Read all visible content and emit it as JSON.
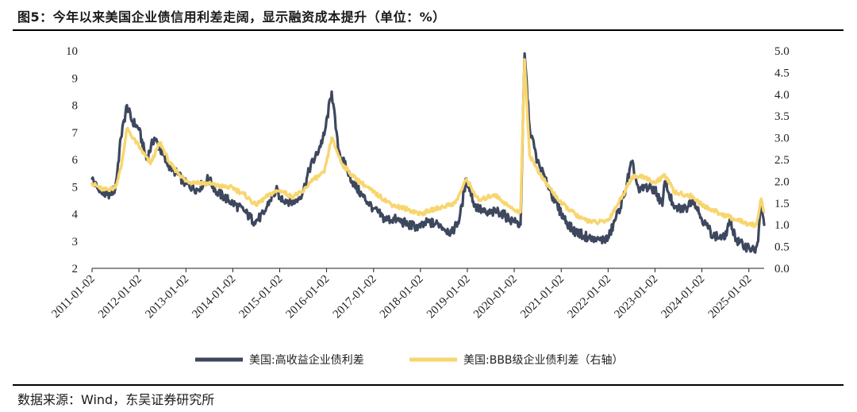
{
  "title": "图5：今年以来美国企业债信用利差走阔，显示融资成本提升（单位：%）",
  "source": "数据来源：Wind，东吴证券研究所",
  "colors": {
    "series1": "#3d475e",
    "series2": "#f8d66f"
  },
  "chart_data": {
    "type": "line",
    "title": "图5：今年以来美国企业债信用利差走阔，显示融资成本提升（单位：%）",
    "xlabel": "",
    "ylabel": "",
    "left_ylim": [
      2,
      10
    ],
    "right_ylim": [
      0,
      5
    ],
    "left_ticks": [
      "2",
      "3",
      "4",
      "5",
      "6",
      "7",
      "8",
      "9",
      "10"
    ],
    "right_ticks": [
      "0.0",
      "0.5",
      "1.0",
      "1.5",
      "2.0",
      "2.5",
      "3.0",
      "3.5",
      "4.0",
      "4.5",
      "5.0"
    ],
    "x_ticks": [
      "2011-01-02",
      "2012-01-02",
      "2013-01-02",
      "2014-01-02",
      "2015-01-02",
      "2016-01-02",
      "2017-01-02",
      "2018-01-02",
      "2019-01-02",
      "2020-01-02",
      "2021-01-02",
      "2022-01-02",
      "2023-01-02",
      "2024-01-02",
      "2025-01-02"
    ],
    "x_range": [
      "2011-01-02",
      "2025-05-01"
    ],
    "legend_position": "bottom",
    "grid": false,
    "series": [
      {
        "name": "美国:高收益企业债利差",
        "axis": "left",
        "x": [
          "2011-01-02",
          "2011-03-01",
          "2011-05-01",
          "2011-07-01",
          "2011-08-15",
          "2011-10-01",
          "2011-11-01",
          "2012-01-02",
          "2012-03-01",
          "2012-05-01",
          "2012-06-15",
          "2012-08-01",
          "2012-10-01",
          "2013-01-02",
          "2013-04-01",
          "2013-06-25",
          "2013-09-01",
          "2014-01-02",
          "2014-04-01",
          "2014-06-20",
          "2014-09-01",
          "2014-10-15",
          "2014-12-16",
          "2015-01-02",
          "2015-03-01",
          "2015-05-01",
          "2015-07-01",
          "2015-09-01",
          "2015-10-01",
          "2015-12-15",
          "2016-02-11",
          "2016-04-01",
          "2016-06-01",
          "2016-08-01",
          "2016-10-01",
          "2017-01-02",
          "2017-04-01",
          "2017-07-01",
          "2017-10-01",
          "2018-01-02",
          "2018-03-01",
          "2018-06-01",
          "2018-09-01",
          "2018-11-01",
          "2018-12-26",
          "2019-03-01",
          "2019-06-01",
          "2019-09-01",
          "2019-12-01",
          "2020-01-02",
          "2020-02-20",
          "2020-03-23",
          "2020-05-01",
          "2020-07-01",
          "2020-09-01",
          "2020-11-01",
          "2021-01-02",
          "2021-04-01",
          "2021-07-01",
          "2021-10-01",
          "2022-01-02",
          "2022-03-01",
          "2022-05-01",
          "2022-07-05",
          "2022-09-01",
          "2022-10-15",
          "2023-01-02",
          "2023-03-01",
          "2023-03-20",
          "2023-06-01",
          "2023-09-01",
          "2023-10-25",
          "2024-01-02",
          "2024-04-01",
          "2024-07-01",
          "2024-08-05",
          "2024-10-01",
          "2024-12-01",
          "2025-01-02",
          "2025-02-15",
          "2025-03-15",
          "2025-04-08",
          "2025-05-01"
        ],
        "values": [
          5.3,
          4.8,
          4.7,
          4.9,
          6.8,
          8.0,
          7.5,
          7.1,
          6.0,
          6.8,
          6.4,
          5.9,
          5.6,
          5.1,
          4.9,
          5.3,
          4.8,
          4.4,
          4.1,
          3.7,
          4.0,
          4.5,
          4.9,
          4.6,
          4.5,
          4.4,
          4.8,
          5.8,
          6.0,
          6.9,
          8.5,
          6.4,
          5.7,
          5.1,
          4.7,
          4.2,
          3.8,
          3.8,
          3.6,
          3.5,
          3.7,
          3.6,
          3.3,
          3.8,
          5.3,
          4.3,
          4.0,
          4.1,
          3.8,
          3.7,
          3.6,
          9.9,
          7.2,
          5.9,
          5.3,
          4.6,
          4.0,
          3.4,
          3.2,
          3.0,
          3.1,
          3.8,
          4.6,
          5.9,
          4.8,
          5.0,
          4.9,
          4.3,
          5.2,
          4.2,
          4.2,
          4.6,
          3.8,
          3.2,
          3.1,
          3.8,
          3.0,
          2.8,
          2.8,
          2.6,
          3.0,
          4.5,
          3.6
        ]
      },
      {
        "name": "美国:BBB级企业债利差（右轴）",
        "axis": "right",
        "x": [
          "2011-01-02",
          "2011-04-01",
          "2011-07-01",
          "2011-08-15",
          "2011-10-01",
          "2012-01-02",
          "2012-04-01",
          "2012-06-15",
          "2012-09-01",
          "2013-01-02",
          "2013-06-25",
          "2013-09-01",
          "2014-01-02",
          "2014-04-01",
          "2014-07-01",
          "2014-10-15",
          "2015-01-02",
          "2015-04-01",
          "2015-07-01",
          "2015-09-01",
          "2015-12-15",
          "2016-02-11",
          "2016-05-01",
          "2016-08-01",
          "2017-01-02",
          "2017-06-01",
          "2017-10-01",
          "2018-01-02",
          "2018-06-01",
          "2018-10-01",
          "2018-12-26",
          "2019-04-01",
          "2019-08-01",
          "2019-12-01",
          "2020-01-02",
          "2020-02-20",
          "2020-03-23",
          "2020-05-01",
          "2020-08-01",
          "2021-01-02",
          "2021-06-01",
          "2021-10-01",
          "2022-01-02",
          "2022-03-01",
          "2022-05-01",
          "2022-07-05",
          "2022-10-15",
          "2023-01-02",
          "2023-03-20",
          "2023-06-01",
          "2023-10-25",
          "2024-01-02",
          "2024-06-01",
          "2024-09-01",
          "2024-12-01",
          "2025-01-02",
          "2025-03-01",
          "2025-04-08",
          "2025-05-01"
        ],
        "values": [
          1.95,
          1.8,
          1.85,
          2.3,
          3.2,
          2.8,
          2.4,
          2.9,
          2.4,
          2.0,
          1.95,
          1.9,
          1.85,
          1.7,
          1.45,
          1.7,
          1.8,
          1.65,
          1.75,
          2.0,
          2.2,
          3.0,
          2.4,
          2.1,
          1.75,
          1.45,
          1.35,
          1.25,
          1.4,
          1.5,
          2.05,
          1.55,
          1.7,
          1.4,
          1.35,
          1.3,
          4.8,
          2.6,
          2.1,
          1.5,
          1.15,
          1.05,
          1.1,
          1.4,
          1.7,
          2.1,
          2.1,
          1.95,
          2.15,
          1.75,
          1.65,
          1.45,
          1.25,
          1.15,
          1.05,
          1.0,
          1.0,
          1.6,
          1.3
        ]
      }
    ]
  }
}
